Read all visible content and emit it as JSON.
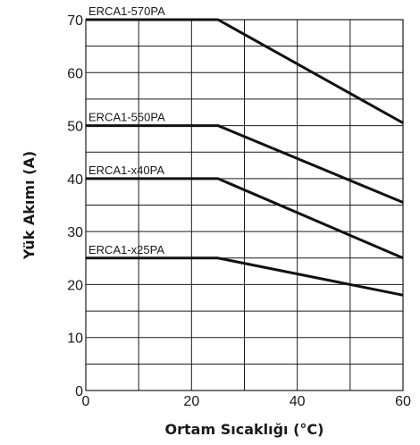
{
  "chart_data": {
    "type": "line",
    "xlabel": "Ortam Sıcaklığı (°C)",
    "ylabel": "Yük Akımı (A)",
    "xlim": [
      0,
      60
    ],
    "ylim": [
      0,
      70
    ],
    "x_ticks": [
      0,
      20,
      40,
      60
    ],
    "y_ticks": [
      0,
      10,
      20,
      30,
      40,
      50,
      60,
      70
    ],
    "grid": true,
    "series": [
      {
        "name": "ERCA1-570PA",
        "x": [
          0,
          25,
          60
        ],
        "y": [
          70,
          70,
          50.5
        ]
      },
      {
        "name": "ERCA1-550PA",
        "x": [
          0,
          25,
          60
        ],
        "y": [
          50,
          50,
          35.5
        ]
      },
      {
        "name": "ERCA1-x40PA",
        "x": [
          0,
          25,
          60
        ],
        "y": [
          40,
          40,
          25
        ]
      },
      {
        "name": "ERCA1-x25PA",
        "x": [
          0,
          25,
          60
        ],
        "y": [
          25,
          25,
          18
        ]
      }
    ],
    "line_color": "#111111"
  }
}
